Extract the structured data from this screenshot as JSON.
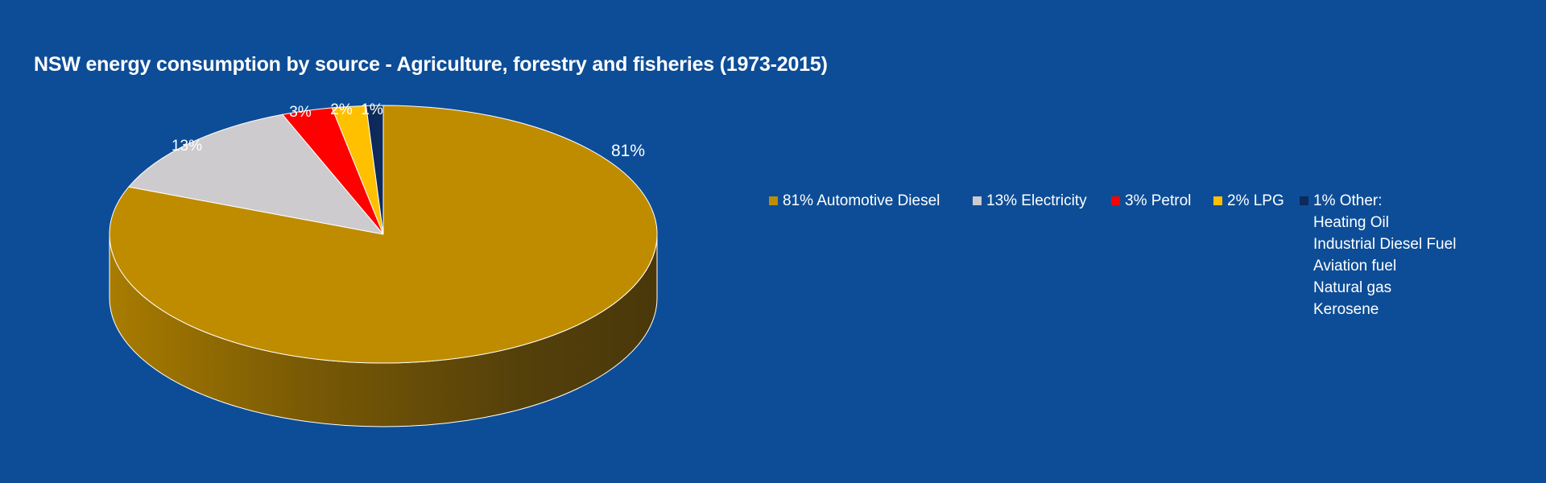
{
  "chart_data": {
    "type": "pie",
    "title": "NSW energy consumption by source - Agriculture, forestry and fisheries (1973-2015)",
    "slices": [
      {
        "label": "81% Automotive Diesel",
        "value": 81,
        "data_label": "81%",
        "color": "#bf8c00"
      },
      {
        "label": "13% Electricity",
        "value": 13,
        "data_label": "13%",
        "color": "#cdcbcd"
      },
      {
        "label": "3% Petrol",
        "value": 3,
        "data_label": "3%",
        "color": "#ff0000"
      },
      {
        "label": "2% LPG",
        "value": 2,
        "data_label": "2%",
        "color": "#ffc000"
      },
      {
        "label": "1% Other:",
        "value": 1,
        "data_label": "1%",
        "color": "#0d2a5a",
        "sublabels": [
          "Heating Oil",
          "Industrial Diesel Fuel",
          "Aviation fuel",
          "Natural gas",
          "Kerosene"
        ]
      }
    ],
    "legend_position": "right"
  },
  "colors": {
    "background": "#0d4d97",
    "text": "#ffffff"
  }
}
